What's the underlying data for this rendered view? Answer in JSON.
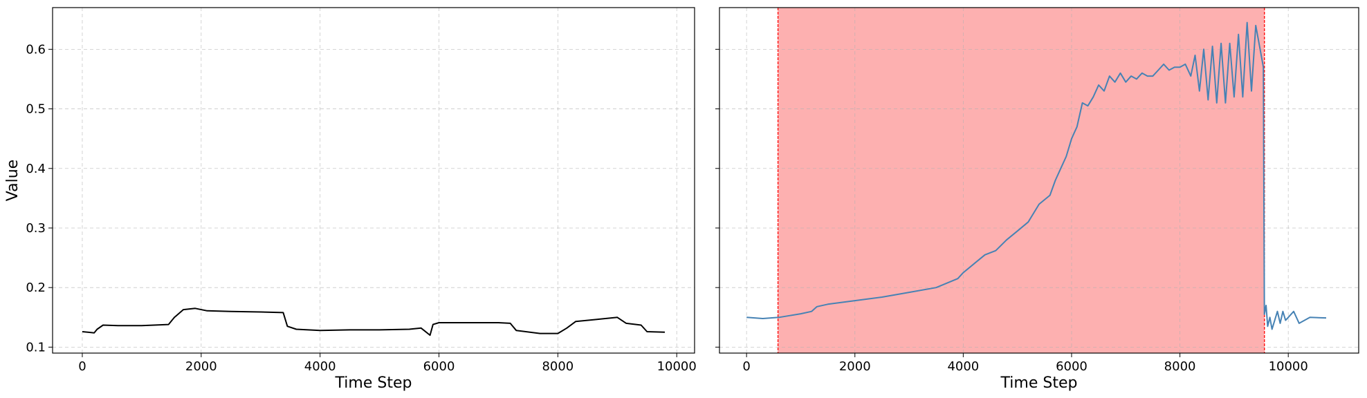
{
  "chart_data": [
    {
      "type": "line",
      "title": "",
      "xlabel": "Time Step",
      "ylabel": "Value",
      "xlim": [
        -500,
        10300
      ],
      "ylim": [
        0.09,
        0.67
      ],
      "xticks": [
        0,
        2000,
        4000,
        6000,
        8000,
        10000
      ],
      "yticks": [
        0.1,
        0.2,
        0.3,
        0.4,
        0.5,
        0.6
      ],
      "xtick_labels": [
        "0",
        "2000",
        "4000",
        "6000",
        "8000",
        "10000"
      ],
      "ytick_labels": [
        "0.1",
        "0.2",
        "0.3",
        "0.4",
        "0.5",
        "0.6"
      ],
      "grid": true,
      "series": [
        {
          "color": "#000000",
          "x": [
            0,
            200,
            250,
            350,
            600,
            1000,
            1450,
            1550,
            1700,
            1900,
            2100,
            2500,
            3000,
            3380,
            3450,
            3600,
            4000,
            4500,
            5000,
            5500,
            5700,
            5850,
            5900,
            6000,
            6500,
            7000,
            7200,
            7300,
            7700,
            8000,
            8150,
            8300,
            8600,
            8800,
            9000,
            9150,
            9400,
            9500,
            9800
          ],
          "y": [
            0.126,
            0.124,
            0.13,
            0.137,
            0.136,
            0.136,
            0.138,
            0.15,
            0.163,
            0.165,
            0.161,
            0.16,
            0.159,
            0.158,
            0.135,
            0.13,
            0.128,
            0.129,
            0.129,
            0.13,
            0.132,
            0.12,
            0.138,
            0.141,
            0.141,
            0.141,
            0.14,
            0.128,
            0.123,
            0.123,
            0.132,
            0.143,
            0.146,
            0.148,
            0.15,
            0.14,
            0.137,
            0.126,
            0.125
          ]
        }
      ]
    },
    {
      "type": "line",
      "title": "",
      "xlabel": "Time Step",
      "ylabel": "",
      "xlim": [
        -500,
        11300
      ],
      "ylim": [
        0.09,
        0.67
      ],
      "xticks": [
        0,
        2000,
        4000,
        6000,
        8000,
        10000
      ],
      "yticks": [
        0.1,
        0.2,
        0.3,
        0.4,
        0.5,
        0.6
      ],
      "xtick_labels": [
        "0",
        "2000",
        "4000",
        "6000",
        "8000",
        "10000"
      ],
      "ytick_labels": [
        "",
        "",
        "",
        "",
        "",
        ""
      ],
      "grid": true,
      "highlight_span": {
        "x": [
          580,
          9560
        ],
        "fill": "#fdb0b0",
        "line_color": "#ff0000"
      },
      "series": [
        {
          "color": "#4682b4",
          "x": [
            0,
            300,
            600,
            800,
            1000,
            1200,
            1300,
            1500,
            2000,
            2500,
            3000,
            3500,
            3900,
            4000,
            4200,
            4400,
            4600,
            4800,
            5000,
            5200,
            5400,
            5600,
            5700,
            5800,
            5900,
            6000,
            6050,
            6100,
            6200,
            6300,
            6400,
            6500,
            6600,
            6700,
            6800,
            6900,
            7000,
            7100,
            7200,
            7300,
            7400,
            7500,
            7600,
            7700,
            7800,
            7900,
            8000,
            8100,
            8200,
            8280,
            8360,
            8440,
            8520,
            8600,
            8680,
            8760,
            8840,
            8920,
            9000,
            9080,
            9160,
            9240,
            9320,
            9400,
            9480,
            9540,
            9560,
            9590,
            9620,
            9660,
            9700,
            9750,
            9800,
            9850,
            9900,
            9950,
            10000,
            10100,
            10200,
            10400,
            10700
          ],
          "y": [
            0.15,
            0.148,
            0.15,
            0.153,
            0.156,
            0.16,
            0.168,
            0.172,
            0.178,
            0.184,
            0.192,
            0.2,
            0.215,
            0.225,
            0.24,
            0.255,
            0.262,
            0.28,
            0.295,
            0.31,
            0.34,
            0.355,
            0.38,
            0.4,
            0.42,
            0.45,
            0.46,
            0.47,
            0.51,
            0.505,
            0.52,
            0.54,
            0.53,
            0.555,
            0.545,
            0.56,
            0.545,
            0.555,
            0.55,
            0.56,
            0.555,
            0.555,
            0.565,
            0.575,
            0.565,
            0.57,
            0.57,
            0.575,
            0.555,
            0.59,
            0.53,
            0.6,
            0.515,
            0.605,
            0.51,
            0.61,
            0.51,
            0.61,
            0.52,
            0.625,
            0.52,
            0.645,
            0.53,
            0.64,
            0.6,
            0.57,
            0.155,
            0.17,
            0.135,
            0.15,
            0.13,
            0.145,
            0.16,
            0.14,
            0.16,
            0.145,
            0.15,
            0.16,
            0.14,
            0.15,
            0.149
          ]
        }
      ]
    }
  ]
}
